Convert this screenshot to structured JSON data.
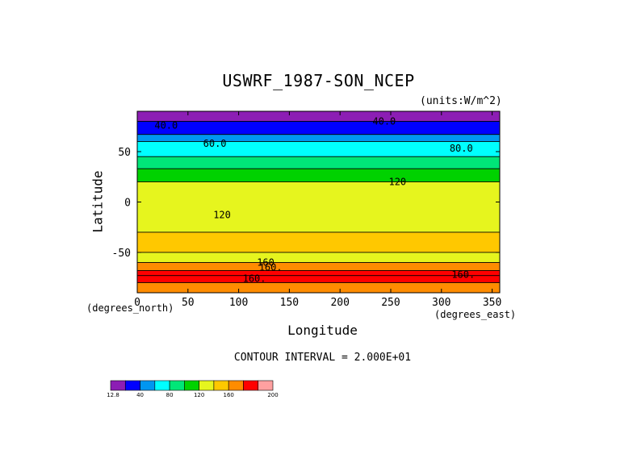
{
  "chart_data": {
    "type": "heatmap",
    "title": "USWRF_1987-SON_NCEP",
    "units_note": "(units:W/m^2)",
    "xlabel": "Longitude",
    "ylabel": "Latitude",
    "x_sublabel_left": "(degrees_north)",
    "x_sublabel_right": "(degrees_east)",
    "xlim": [
      0,
      357.5
    ],
    "ylim": [
      -90,
      90
    ],
    "x_ticks": [
      0,
      50,
      100,
      150,
      200,
      250,
      300,
      350
    ],
    "y_ticks": [
      50,
      0,
      -50
    ],
    "contour_interval_label": "CONTOUR INTERVAL = 2.000E+01",
    "colorbar": {
      "levels": [
        12.8,
        20,
        40,
        60,
        80,
        100,
        120,
        140,
        160,
        180,
        200
      ],
      "tick_labels": [
        "12.8",
        "40",
        "80",
        "120",
        "160",
        "200"
      ],
      "colors": [
        "#8c1eb4",
        "#0000ff",
        "#0096f0",
        "#00ffff",
        "#00e678",
        "#00d200",
        "#e6f51e",
        "#ffc800",
        "#ff8c00",
        "#ff0000",
        "#ffa0a0"
      ]
    },
    "zonal_bands": [
      {
        "lat_from": 90,
        "lat_to": 80,
        "value_range": "12.8-20"
      },
      {
        "lat_from": 80,
        "lat_to": 67,
        "value_range": "20-40"
      },
      {
        "lat_from": 67,
        "lat_to": 60,
        "value_range": "40-60"
      },
      {
        "lat_from": 60,
        "lat_to": 45,
        "value_range": "60-80"
      },
      {
        "lat_from": 45,
        "lat_to": 33,
        "value_range": "80-100"
      },
      {
        "lat_from": 33,
        "lat_to": 20,
        "value_range": "100-120"
      },
      {
        "lat_from": 20,
        "lat_to": -30,
        "value_range": "120-140"
      },
      {
        "lat_from": -30,
        "lat_to": -50,
        "value_range": "140-160"
      },
      {
        "lat_from": -50,
        "lat_to": -60,
        "value_range": "120-140"
      },
      {
        "lat_from": -60,
        "lat_to": -68,
        "value_range": "160-180"
      },
      {
        "lat_from": -68,
        "lat_to": -73,
        "value_range": "180-200"
      },
      {
        "lat_from": -73,
        "lat_to": -80,
        "value_range": "180-200"
      },
      {
        "lat_from": -80,
        "lat_to": -90,
        "value_range": "160-180"
      }
    ],
    "contour_labels": [
      {
        "text": "40.0",
        "lon": 17,
        "lat": 73
      },
      {
        "text": "40.0",
        "lon": 232,
        "lat": 77
      },
      {
        "text": "60.0",
        "lon": 65,
        "lat": 55
      },
      {
        "text": "80.0",
        "lon": 308,
        "lat": 50
      },
      {
        "text": "120",
        "lon": 248,
        "lat": 17
      },
      {
        "text": "120",
        "lon": 75,
        "lat": -16
      },
      {
        "text": "160",
        "lon": 118,
        "lat": -63
      },
      {
        "text": "160.",
        "lon": 120,
        "lat": -68
      },
      {
        "text": "160.",
        "lon": 104,
        "lat": -79
      },
      {
        "text": "160.",
        "lon": 310,
        "lat": -75
      }
    ]
  }
}
